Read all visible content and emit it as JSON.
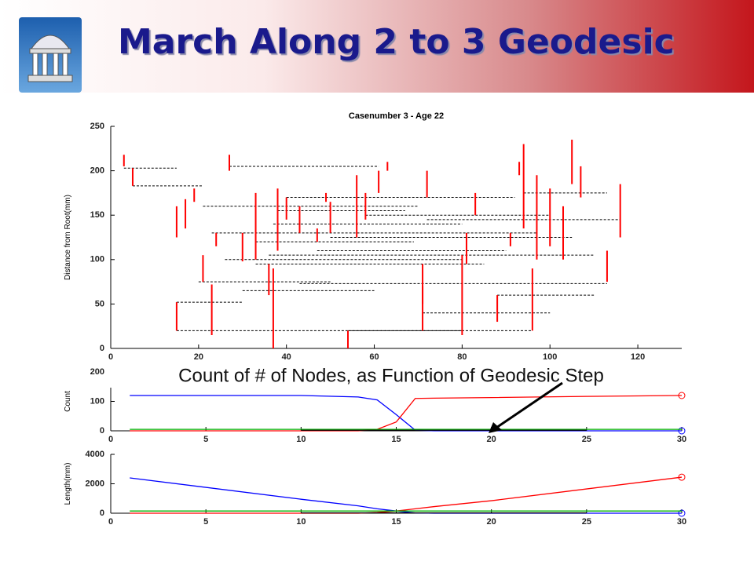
{
  "header": {
    "title": "March Along 2 to 3 Geodesic"
  },
  "annotation": "Count of # of Nodes, as Function of Geodesic Step",
  "chart_data": [
    {
      "type": "tree",
      "title": "Casenumber 3 - Age 22",
      "ylabel": "Distance from Root(mm)",
      "xlim": [
        0,
        130
      ],
      "ylim": [
        0,
        250
      ],
      "xticks": [
        0,
        20,
        40,
        60,
        80,
        100,
        120
      ],
      "yticks": [
        0,
        50,
        100,
        150,
        200,
        250
      ],
      "color": "#ff0000",
      "link_color": "#000000",
      "branches": [
        [
          3,
          205,
          218
        ],
        [
          5,
          183,
          203
        ],
        [
          15,
          20,
          52
        ],
        [
          15,
          125,
          160
        ],
        [
          17,
          135,
          168
        ],
        [
          19,
          165,
          180
        ],
        [
          21,
          75,
          105
        ],
        [
          23,
          15,
          72
        ],
        [
          24,
          115,
          130
        ],
        [
          27,
          200,
          218
        ],
        [
          30,
          98,
          130
        ],
        [
          33,
          100,
          175
        ],
        [
          36,
          60,
          95
        ],
        [
          37,
          0,
          90
        ],
        [
          38,
          110,
          180
        ],
        [
          40,
          145,
          170
        ],
        [
          43,
          130,
          160
        ],
        [
          47,
          120,
          135
        ],
        [
          49,
          165,
          175
        ],
        [
          50,
          130,
          165
        ],
        [
          54,
          0,
          20
        ],
        [
          56,
          125,
          195
        ],
        [
          58,
          145,
          175
        ],
        [
          61,
          175,
          200
        ],
        [
          63,
          200,
          210
        ],
        [
          71,
          50,
          95
        ],
        [
          71,
          20,
          70
        ],
        [
          72,
          170,
          200
        ],
        [
          80,
          15,
          105
        ],
        [
          81,
          95,
          130
        ],
        [
          83,
          150,
          175
        ],
        [
          88,
          30,
          60
        ],
        [
          91,
          115,
          130
        ],
        [
          93,
          195,
          210
        ],
        [
          94,
          135,
          230
        ],
        [
          96,
          20,
          90
        ],
        [
          97,
          100,
          195
        ],
        [
          100,
          115,
          180
        ],
        [
          103,
          100,
          160
        ],
        [
          105,
          185,
          235
        ],
        [
          107,
          170,
          205
        ],
        [
          113,
          75,
          110
        ],
        [
          116,
          125,
          185
        ]
      ],
      "links": [
        [
          3,
          15,
          203
        ],
        [
          5,
          21,
          183
        ],
        [
          15,
          80,
          20
        ],
        [
          15,
          30,
          52
        ],
        [
          21,
          70,
          160
        ],
        [
          27,
          61,
          205
        ],
        [
          33,
          69,
          120
        ],
        [
          37,
          80,
          140
        ],
        [
          23,
          97,
          130
        ],
        [
          36,
          110,
          105
        ],
        [
          20,
          50,
          75
        ],
        [
          38,
          67,
          155
        ],
        [
          54,
          96,
          20
        ],
        [
          71,
          100,
          40
        ],
        [
          47,
          90,
          110
        ],
        [
          50,
          105,
          125
        ],
        [
          43,
          113,
          73
        ],
        [
          33,
          85,
          95
        ],
        [
          72,
          116,
          145
        ],
        [
          88,
          110,
          60
        ],
        [
          94,
          113,
          175
        ],
        [
          58,
          100,
          150
        ],
        [
          30,
          60,
          65
        ],
        [
          40,
          92,
          170
        ],
        [
          26,
          80,
          100
        ]
      ]
    },
    {
      "type": "line",
      "ylabel": "Count",
      "xlim": [
        0,
        30
      ],
      "ylim": [
        0,
        200
      ],
      "xticks": [
        0,
        5,
        10,
        15,
        20,
        25,
        30
      ],
      "yticks": [
        0,
        100,
        200
      ],
      "x": [
        1,
        10,
        13,
        14,
        15,
        16,
        17,
        20,
        25,
        30
      ],
      "series": [
        {
          "color": "#0000ff",
          "values": [
            120,
            120,
            115,
            105,
            55,
            2,
            0,
            0,
            0,
            0
          ],
          "end_marker": true
        },
        {
          "color": "#ff0000",
          "values": [
            0,
            0,
            0,
            5,
            30,
            110,
            111,
            113,
            117,
            120
          ],
          "end_marker": true
        },
        {
          "color": "#00b000",
          "values": [
            5,
            5,
            5,
            5,
            5,
            5,
            5,
            5,
            5,
            5
          ],
          "end_marker": false
        },
        {
          "color": "#000000",
          "values": [
            null,
            2,
            2,
            2,
            2,
            2,
            2,
            2,
            2,
            null
          ],
          "end_marker": false
        }
      ]
    },
    {
      "type": "line",
      "ylabel": "Length(mm)",
      "xlim": [
        0,
        30
      ],
      "ylim": [
        0,
        4000
      ],
      "xticks": [
        0,
        5,
        10,
        15,
        20,
        25,
        30
      ],
      "yticks": [
        0,
        2000,
        4000
      ],
      "x": [
        1,
        10,
        13,
        14,
        15,
        16,
        17,
        20,
        25,
        30
      ],
      "series": [
        {
          "color": "#0000ff",
          "values": [
            2400,
            950,
            500,
            300,
            150,
            20,
            0,
            0,
            0,
            0
          ],
          "end_marker": true
        },
        {
          "color": "#ff0000",
          "values": [
            0,
            0,
            0,
            50,
            150,
            300,
            450,
            850,
            1650,
            2450
          ],
          "end_marker": true
        },
        {
          "color": "#00b000",
          "values": [
            150,
            150,
            150,
            150,
            150,
            150,
            150,
            150,
            150,
            150
          ],
          "end_marker": false
        },
        {
          "color": "#000000",
          "values": [
            null,
            20,
            20,
            20,
            20,
            20,
            20,
            20,
            20,
            null
          ],
          "end_marker": false
        }
      ]
    }
  ]
}
